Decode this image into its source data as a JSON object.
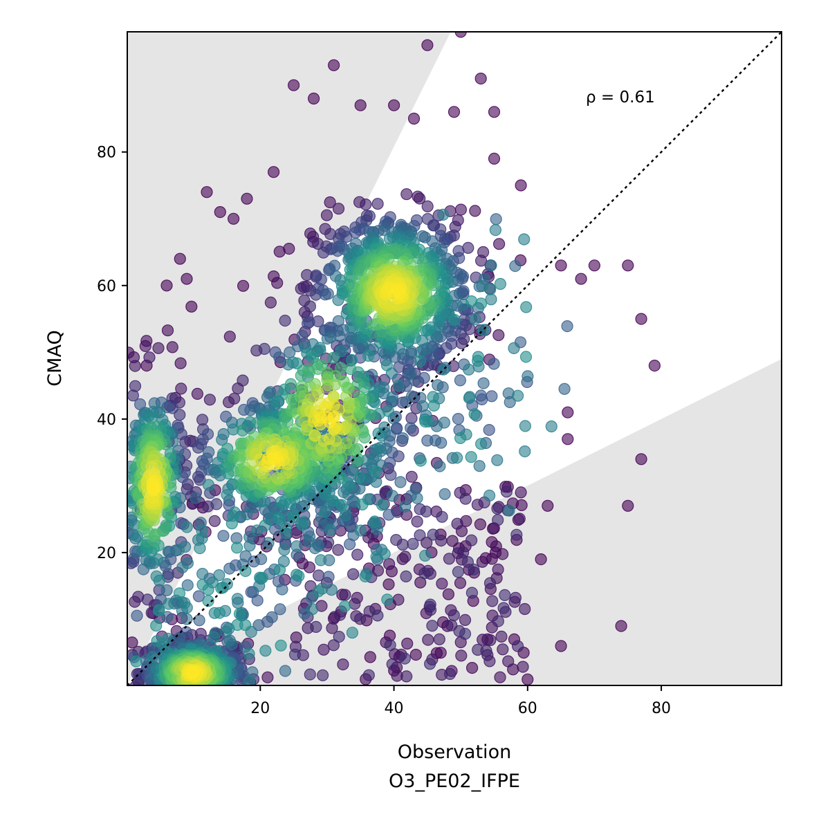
{
  "chart_data": {
    "type": "scatter",
    "title": "",
    "xlabel": "Observation",
    "xlabel_sub": "O3_PE02_IFPE",
    "ylabel": "CMAQ",
    "xlim": [
      0.1,
      98
    ],
    "ylim": [
      0.1,
      98
    ],
    "xticks": [
      20,
      40,
      60,
      80
    ],
    "yticks": [
      20,
      40,
      60,
      80
    ],
    "annotation": "ρ = 0.61",
    "reference_line": {
      "type": "1:1",
      "style": "dotted",
      "color": "#000000"
    },
    "shaded_regions": [
      {
        "polygon": [
          [
            0.1,
            0.1
          ],
          [
            0.1,
            98
          ],
          [
            48.5,
            98
          ]
        ],
        "color": "#e5e5e5"
      },
      {
        "polygon": [
          [
            0.1,
            0.1
          ],
          [
            98,
            0.1
          ],
          [
            98,
            49
          ]
        ],
        "color": "#e5e5e5"
      }
    ],
    "colormap": "viridis (point density)",
    "colors": {
      "low_density": "#440154",
      "mid_density": "#21918c",
      "high_density": "#fde725",
      "shade": "#e5e5e5"
    },
    "density_clusters": [
      {
        "center": [
          10,
          2
        ],
        "spread": [
          4,
          2.5
        ],
        "n": 420
      },
      {
        "center": [
          40,
          59
        ],
        "spread": [
          6,
          6
        ],
        "n": 700
      },
      {
        "center": [
          4,
          30
        ],
        "spread": [
          2.5,
          8
        ],
        "n": 300
      },
      {
        "center": [
          22,
          34
        ],
        "spread": [
          6,
          5
        ],
        "n": 350
      },
      {
        "center": [
          30,
          40
        ],
        "spread": [
          6,
          8
        ],
        "n": 300
      }
    ],
    "sample_outliers": [
      [
        31,
        93
      ],
      [
        45,
        96
      ],
      [
        50,
        98
      ],
      [
        53,
        91
      ],
      [
        25,
        90
      ],
      [
        65,
        63
      ],
      [
        70,
        63
      ],
      [
        75,
        63
      ],
      [
        77,
        55
      ],
      [
        79,
        48
      ],
      [
        77,
        34
      ],
      [
        74,
        9
      ],
      [
        75,
        27
      ],
      [
        68,
        61
      ],
      [
        62,
        19
      ],
      [
        65,
        6
      ],
      [
        60,
        1
      ],
      [
        55,
        79
      ],
      [
        59,
        75
      ],
      [
        8,
        64
      ],
      [
        3,
        48
      ],
      [
        12,
        74
      ],
      [
        18,
        73
      ],
      [
        22,
        77
      ],
      [
        55,
        86
      ],
      [
        49,
        86
      ],
      [
        28,
        88
      ],
      [
        35,
        87
      ],
      [
        43,
        85
      ],
      [
        40,
        87
      ],
      [
        16,
        70
      ],
      [
        14,
        71
      ],
      [
        9,
        61
      ],
      [
        6,
        60
      ],
      [
        66,
        37
      ],
      [
        66,
        41
      ],
      [
        63,
        27
      ],
      [
        52,
        17
      ],
      [
        48,
        9
      ],
      [
        47,
        5
      ],
      [
        58,
        7
      ],
      [
        54,
        7
      ]
    ]
  }
}
